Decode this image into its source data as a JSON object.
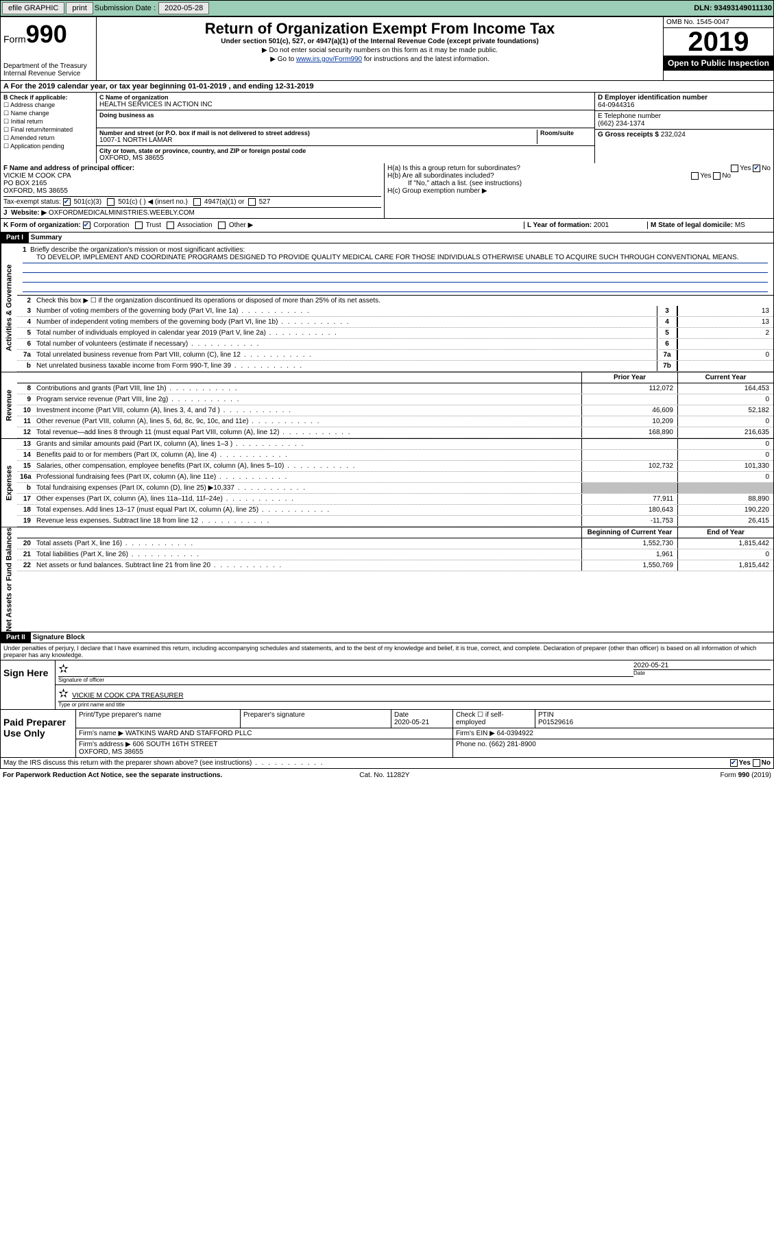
{
  "topbar": {
    "efile": "efile GRAPHIC",
    "print": "print",
    "sub_lbl": "Submission Date :",
    "sub_date": "2020-05-28",
    "dln": "DLN: 93493149011130"
  },
  "header": {
    "form_prefix": "Form",
    "form_num": "990",
    "dept": "Department of the Treasury\nInternal Revenue Service",
    "title": "Return of Organization Exempt From Income Tax",
    "sub": "Under section 501(c), 527, or 4947(a)(1) of the Internal Revenue Code (except private foundations)",
    "note1": "▶ Do not enter social security numbers on this form as it may be made public.",
    "note2_pre": "▶ Go to ",
    "note2_link": "www.irs.gov/Form990",
    "note2_post": " for instructions and the latest information.",
    "omb": "OMB No. 1545-0047",
    "year": "2019",
    "open": "Open to Public Inspection"
  },
  "period": "A  For the 2019 calendar year, or tax year beginning 01-01-2019     , and ending 12-31-2019",
  "colB": {
    "hd": "B Check if applicable:",
    "items": [
      "☐ Address change",
      "☐ Name change",
      "☐ Initial return",
      "☐ Final return/terminated",
      "☐ Amended return",
      "☐ Application pending"
    ]
  },
  "colC": {
    "name_lbl": "C Name of organization",
    "name": "HEALTH SERVICES IN ACTION INC",
    "dba_lbl": "Doing business as",
    "addr_lbl": "Number and street (or P.O. box if mail is not delivered to street address)",
    "room_lbl": "Room/suite",
    "addr": "1007-1 NORTH LAMAR",
    "city_lbl": "City or town, state or province, country, and ZIP or foreign postal code",
    "city": "OXFORD, MS  38655"
  },
  "colD": {
    "ein_lbl": "D Employer identification number",
    "ein": "64-0944316",
    "tel_lbl": "E Telephone number",
    "tel": "(662) 234-1374",
    "gross_lbl": "G Gross receipts $",
    "gross": "232,024"
  },
  "F": {
    "lbl": "F  Name and address of principal officer:",
    "name": "VICKIE M COOK CPA",
    "addr1": "PO BOX 2165",
    "addr2": "OXFORD, MS  38655"
  },
  "H": {
    "a": "H(a)  Is this a group return for subordinates?",
    "b": "H(b)  Are all subordinates included?",
    "note": "If \"No,\" attach a list. (see instructions)",
    "c": "H(c)  Group exemption number ▶"
  },
  "tax_status_lbl": "Tax-exempt status:",
  "tax_opts": [
    "501(c)(3)",
    "501(c) (  ) ◀ (insert no.)",
    "4947(a)(1) or",
    "527"
  ],
  "J": {
    "lbl": "J",
    "web_lbl": "Website: ▶",
    "web": "OXFORDMEDICALMINISTRIES.WEEBLY.COM"
  },
  "K": {
    "lbl": "K Form of organization:",
    "opts": [
      "Corporation",
      "Trust",
      "Association",
      "Other ▶"
    ]
  },
  "L": {
    "lbl": "L Year of formation:",
    "val": "2001"
  },
  "M": {
    "lbl": "M State of legal domicile:",
    "val": "MS"
  },
  "part1": {
    "hdr": "Part I",
    "title": "Summary"
  },
  "line1": {
    "num": "1",
    "lbl": "Briefly describe the organization's mission or most significant activities:",
    "text": "TO DEVELOP, IMPLEMENT AND COORDINATE PROGRAMS DESIGNED TO PROVIDE QUALITY MEDICAL CARE FOR THOSE INDIVIDUALS OTHERWISE UNABLE TO ACQUIRE SUCH THROUGH CONVENTIONAL MEANS."
  },
  "line2": "Check this box ▶ ☐  if the organization discontinued its operations or disposed of more than 25% of its net assets.",
  "ag_lines": [
    {
      "n": "3",
      "d": "Number of voting members of the governing body (Part VI, line 1a)",
      "box": "3",
      "v": "13"
    },
    {
      "n": "4",
      "d": "Number of independent voting members of the governing body (Part VI, line 1b)",
      "box": "4",
      "v": "13"
    },
    {
      "n": "5",
      "d": "Total number of individuals employed in calendar year 2019 (Part V, line 2a)",
      "box": "5",
      "v": "2"
    },
    {
      "n": "6",
      "d": "Total number of volunteers (estimate if necessary)",
      "box": "6",
      "v": ""
    },
    {
      "n": "7a",
      "d": "Total unrelated business revenue from Part VIII, column (C), line 12",
      "box": "7a",
      "v": "0"
    },
    {
      "n": "b",
      "d": "Net unrelated business taxable income from Form 990-T, line 39",
      "box": "7b",
      "v": ""
    }
  ],
  "col_hdrs": {
    "py": "Prior Year",
    "cy": "Current Year"
  },
  "rev_lines": [
    {
      "n": "8",
      "d": "Contributions and grants (Part VIII, line 1h)",
      "py": "112,072",
      "cy": "164,453"
    },
    {
      "n": "9",
      "d": "Program service revenue (Part VIII, line 2g)",
      "py": "",
      "cy": "0"
    },
    {
      "n": "10",
      "d": "Investment income (Part VIII, column (A), lines 3, 4, and 7d )",
      "py": "46,609",
      "cy": "52,182"
    },
    {
      "n": "11",
      "d": "Other revenue (Part VIII, column (A), lines 5, 6d, 8c, 9c, 10c, and 11e)",
      "py": "10,209",
      "cy": "0"
    },
    {
      "n": "12",
      "d": "Total revenue—add lines 8 through 11 (must equal Part VIII, column (A), line 12)",
      "py": "168,890",
      "cy": "216,635"
    }
  ],
  "exp_lines": [
    {
      "n": "13",
      "d": "Grants and similar amounts paid (Part IX, column (A), lines 1–3 )",
      "py": "",
      "cy": "0"
    },
    {
      "n": "14",
      "d": "Benefits paid to or for members (Part IX, column (A), line 4)",
      "py": "",
      "cy": "0"
    },
    {
      "n": "15",
      "d": "Salaries, other compensation, employee benefits (Part IX, column (A), lines 5–10)",
      "py": "102,732",
      "cy": "101,330"
    },
    {
      "n": "16a",
      "d": "Professional fundraising fees (Part IX, column (A), line 11e)",
      "py": "",
      "cy": "0"
    },
    {
      "n": "b",
      "d": "Total fundraising expenses (Part IX, column (D), line 25) ▶10,337",
      "py": "shade",
      "cy": "shade"
    },
    {
      "n": "17",
      "d": "Other expenses (Part IX, column (A), lines 11a–11d, 11f–24e)",
      "py": "77,911",
      "cy": "88,890"
    },
    {
      "n": "18",
      "d": "Total expenses. Add lines 13–17 (must equal Part IX, column (A), line 25)",
      "py": "180,643",
      "cy": "190,220"
    },
    {
      "n": "19",
      "d": "Revenue less expenses. Subtract line 18 from line 12",
      "py": "-11,753",
      "cy": "26,415"
    }
  ],
  "na_hdrs": {
    "b": "Beginning of Current Year",
    "e": "End of Year"
  },
  "na_lines": [
    {
      "n": "20",
      "d": "Total assets (Part X, line 16)",
      "b": "1,552,730",
      "e": "1,815,442"
    },
    {
      "n": "21",
      "d": "Total liabilities (Part X, line 26)",
      "b": "1,961",
      "e": "0"
    },
    {
      "n": "22",
      "d": "Net assets or fund balances. Subtract line 21 from line 20",
      "b": "1,550,769",
      "e": "1,815,442"
    }
  ],
  "part2": {
    "hdr": "Part II",
    "title": "Signature Block"
  },
  "penalty": "Under penalties of perjury, I declare that I have examined this return, including accompanying schedules and statements, and to the best of my knowledge and belief, it is true, correct, and complete. Declaration of preparer (other than officer) is based on all information of which preparer has any knowledge.",
  "sign": {
    "here": "Sign Here",
    "sig_lbl": "Signature of officer",
    "date_lbl": "Date",
    "date": "2020-05-21",
    "name": "VICKIE M COOK CPA  TREASURER",
    "name_lbl": "Type or print name and title"
  },
  "prep": {
    "hdr": "Paid Preparer Use Only",
    "cols": [
      "Print/Type preparer's name",
      "Preparer's signature",
      "Date",
      "",
      "PTIN"
    ],
    "date": "2020-05-21",
    "check_lbl": "Check ☐  if self-employed",
    "ptin": "P01529616",
    "firm_lbl": "Firm's name     ▶",
    "firm": "WATKINS WARD AND STAFFORD PLLC",
    "ein_lbl": "Firm's EIN ▶",
    "ein": "64-0394922",
    "addr_lbl": "Firm's address ▶",
    "addr": "606 SOUTH 16TH STREET\nOXFORD, MS  38655",
    "phone_lbl": "Phone no.",
    "phone": "(662) 281-8900"
  },
  "discuss": "May the IRS discuss this return with the preparer shown above? (see instructions)",
  "footer": {
    "l": "For Paperwork Reduction Act Notice, see the separate instructions.",
    "m": "Cat. No. 11282Y",
    "r": "Form 990 (2019)"
  },
  "side": {
    "ag": "Activities & Governance",
    "rev": "Revenue",
    "exp": "Expenses",
    "na": "Net Assets or Fund Balances"
  }
}
